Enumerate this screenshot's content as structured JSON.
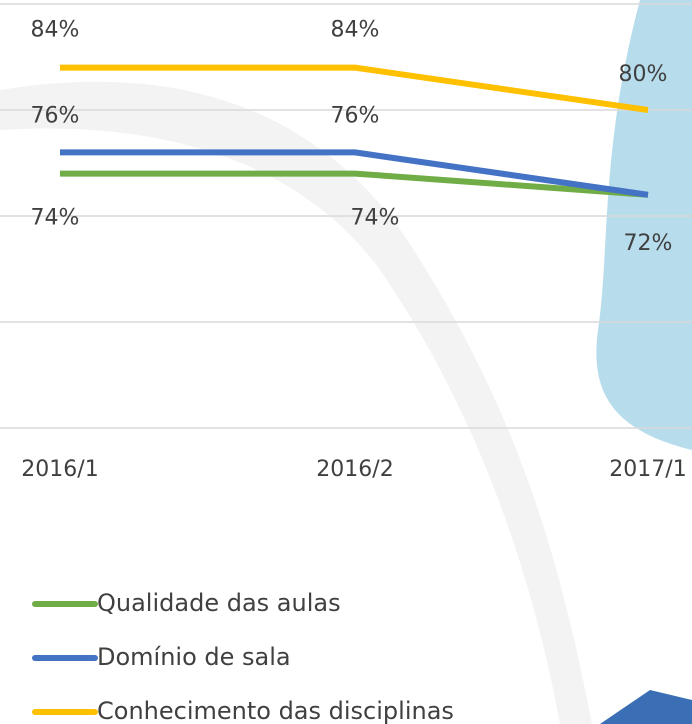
{
  "chart_data": {
    "type": "line",
    "categories": [
      "2016/1",
      "2016/2",
      "2017/1"
    ],
    "series": [
      {
        "name": "Qualidade das aulas",
        "color": "#70ad47",
        "values": [
          74,
          74,
          72
        ],
        "value_labels": [
          "74%",
          "74%",
          "72%"
        ]
      },
      {
        "name": "Domínio de sala",
        "color": "#4472c4",
        "values": [
          76,
          76,
          72
        ],
        "value_labels": [
          "76%",
          "76%",
          null
        ]
      },
      {
        "name": "Conhecimento das disciplinas",
        "color": "#ffc000",
        "values": [
          84,
          84,
          80
        ],
        "value_labels": [
          "84%",
          "84%",
          "80%"
        ]
      }
    ],
    "ylim": [
      50,
      90
    ],
    "yticks": [
      50,
      60,
      70,
      80,
      90
    ],
    "grid": true
  }
}
